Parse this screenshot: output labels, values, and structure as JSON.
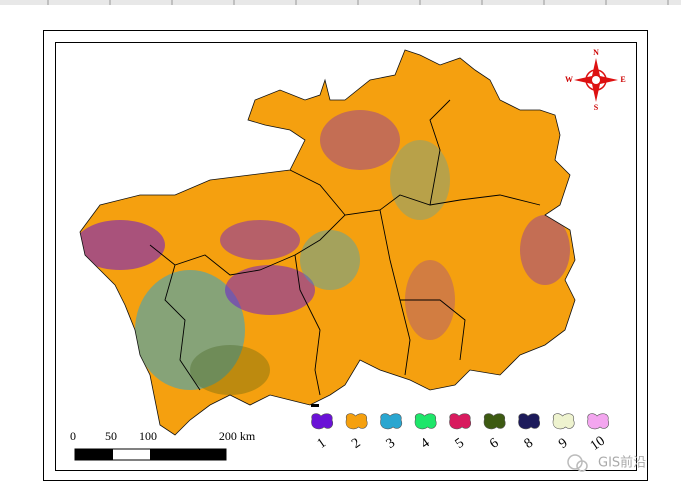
{
  "compass": {
    "north": "N",
    "south": "S",
    "west": "W",
    "east": "E"
  },
  "scale_bar": {
    "labels": [
      "0",
      "50",
      "100",
      "200 km"
    ]
  },
  "legend": [
    {
      "label": "1",
      "color": "#6a12d6"
    },
    {
      "label": "2",
      "color": "#f5a00f"
    },
    {
      "label": "3",
      "color": "#2aa6d0"
    },
    {
      "label": "4",
      "color": "#1ee66a"
    },
    {
      "label": "5",
      "color": "#d81b5e"
    },
    {
      "label": "6",
      "color": "#3d5a12"
    },
    {
      "label": "8",
      "color": "#1c1a5a"
    },
    {
      "label": "9",
      "color": "#eef3cf"
    },
    {
      "label": "10",
      "color": "#f3a6ef"
    }
  ],
  "watermark": "GIS前沿"
}
